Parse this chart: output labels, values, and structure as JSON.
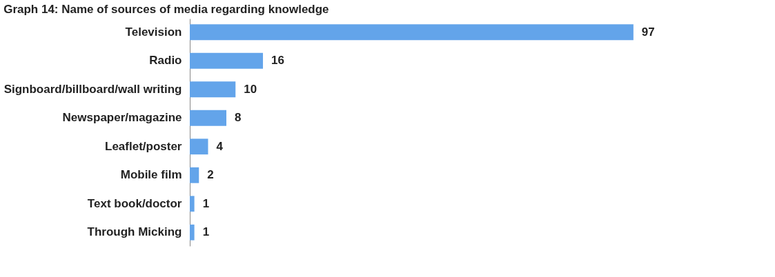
{
  "chart_data": {
    "type": "bar",
    "orientation": "horizontal",
    "title": "Graph 14: Name of sources of media regarding knowledge",
    "categories": [
      "Television",
      "Radio",
      "Signboard/billboard/wall writing",
      "Newspaper/magazine",
      "Leaflet/poster",
      "Mobile film",
      "Text book/doctor",
      "Through Micking"
    ],
    "values": [
      97,
      16,
      10,
      8,
      4,
      2,
      1,
      1
    ],
    "color": "#63a4ea",
    "data_labels": true
  }
}
